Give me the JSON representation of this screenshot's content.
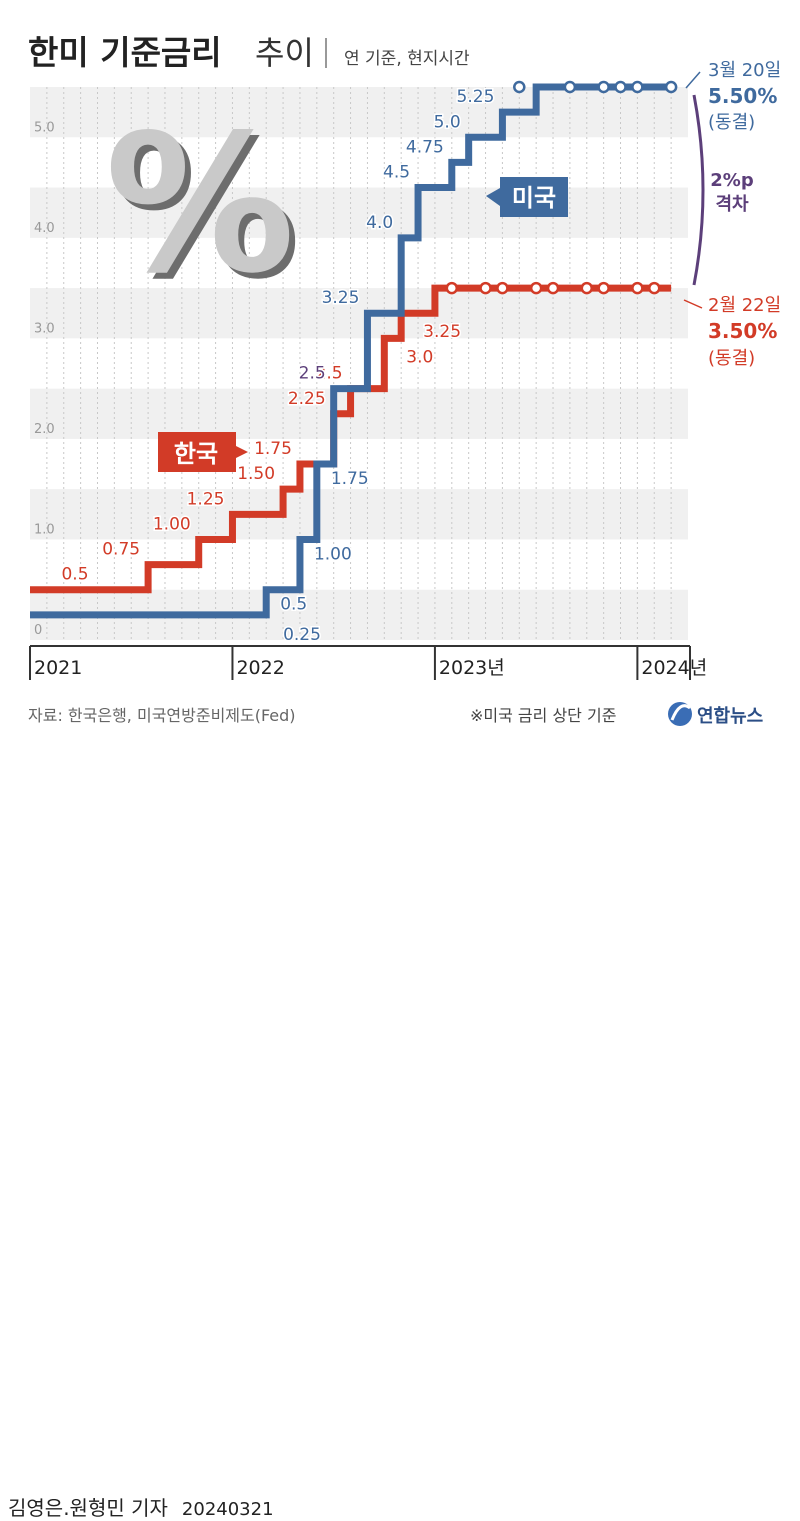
{
  "title": {
    "main": "한미 기준금리",
    "sub": "추이",
    "note": "연 기준, 현지시간"
  },
  "chart_data": {
    "type": "line",
    "title": "한미 기준금리 추이",
    "subtitle": "연 기준, 현지시간",
    "ylim": [
      0,
      5.5
    ],
    "y_ticks": [
      {
        "value": 0,
        "label": "0"
      },
      {
        "value": 1,
        "label": "1.0"
      },
      {
        "value": 2,
        "label": "2.0"
      },
      {
        "value": 3,
        "label": "3.0"
      },
      {
        "value": 4,
        "label": "4.0"
      },
      {
        "value": 5,
        "label": "5.0"
      }
    ],
    "x_period": [
      "2021-01",
      "2024-04"
    ],
    "x_ticks": [
      {
        "date": "2021-01",
        "label": "2021"
      },
      {
        "date": "2022-01",
        "label": "2022"
      },
      {
        "date": "2023-01",
        "label": "2023년"
      },
      {
        "date": "2024-01",
        "label": "2024년"
      }
    ],
    "series": [
      {
        "name": "한국",
        "color": "#d23b27",
        "start": {
          "date": "2021-01",
          "value": 0.5
        },
        "steps": [
          {
            "date": "2021-08",
            "value": 0.75,
            "label": "0.75"
          },
          {
            "date": "2021-11",
            "value": 1.0,
            "label": "1.00"
          },
          {
            "date": "2022-01",
            "value": 1.25,
            "label": "1.25"
          },
          {
            "date": "2022-04",
            "value": 1.5,
            "label": "1.50"
          },
          {
            "date": "2022-05",
            "value": 1.75,
            "label": "1.75"
          },
          {
            "date": "2022-07",
            "value": 2.25,
            "label": "2.25"
          },
          {
            "date": "2022-08",
            "value": 2.5,
            "label": "2.5"
          },
          {
            "date": "2022-10",
            "value": 3.0,
            "label": "3.0"
          },
          {
            "date": "2022-11",
            "value": 3.25,
            "label": "3.25"
          },
          {
            "date": "2023-01",
            "value": 3.5,
            "label": ""
          }
        ],
        "end": {
          "date": "2024-03",
          "value": 3.5
        },
        "start_label": "0.5",
        "holds": [
          "2023-02",
          "2023-04",
          "2023-05",
          "2023-07",
          "2023-08",
          "2023-10",
          "2023-11",
          "2024-01",
          "2024-02"
        ],
        "badge": "한국"
      },
      {
        "name": "미국",
        "color": "#3f6a9e",
        "start": {
          "date": "2021-01",
          "value": 0.25
        },
        "steps": [
          {
            "date": "2022-03",
            "value": 0.5,
            "label": "0.5"
          },
          {
            "date": "2022-05",
            "value": 1.0,
            "label": "1.00"
          },
          {
            "date": "2022-06",
            "value": 1.75,
            "label": "1.75"
          },
          {
            "date": "2022-07",
            "value": 2.5,
            "label": "2.5"
          },
          {
            "date": "2022-09",
            "value": 3.25,
            "label": "3.25"
          },
          {
            "date": "2022-11",
            "value": 4.0,
            "label": "4.0"
          },
          {
            "date": "2022-12",
            "value": 4.5,
            "label": "4.5"
          },
          {
            "date": "2023-02",
            "value": 4.75,
            "label": "4.75"
          },
          {
            "date": "2023-03",
            "value": 5.0,
            "label": "5.0"
          },
          {
            "date": "2023-05",
            "value": 5.25,
            "label": "5.25"
          },
          {
            "date": "2023-07",
            "value": 5.5,
            "label": ""
          }
        ],
        "end": {
          "date": "2024-03",
          "value": 5.5
        },
        "start_label": "0.25",
        "holds": [
          "2023-06",
          "2023-09",
          "2023-11",
          "2023-12",
          "2024-01",
          "2024-03"
        ],
        "badge": "미국"
      }
    ],
    "annotations": {
      "us": {
        "date": "3월 20일",
        "rate": "5.50%",
        "status": "(동결)"
      },
      "kr": {
        "date": "2월 22일",
        "rate": "3.50%",
        "status": "(동결)"
      },
      "gap": {
        "value": "2%p",
        "label": "격차"
      }
    }
  },
  "footer": {
    "source": "자료: 한국은행, 미국연방준비제도(Fed)",
    "note": "※미국 금리 상단 기준",
    "logo_text": "연합뉴스",
    "byline": "김영은.원형민 기자",
    "date": "20240321"
  },
  "colors": {
    "korea": "#d23b27",
    "usa": "#3f6a9e",
    "gap": "#5c3f7a",
    "band": "#f0f0f0",
    "text": "#222222"
  }
}
